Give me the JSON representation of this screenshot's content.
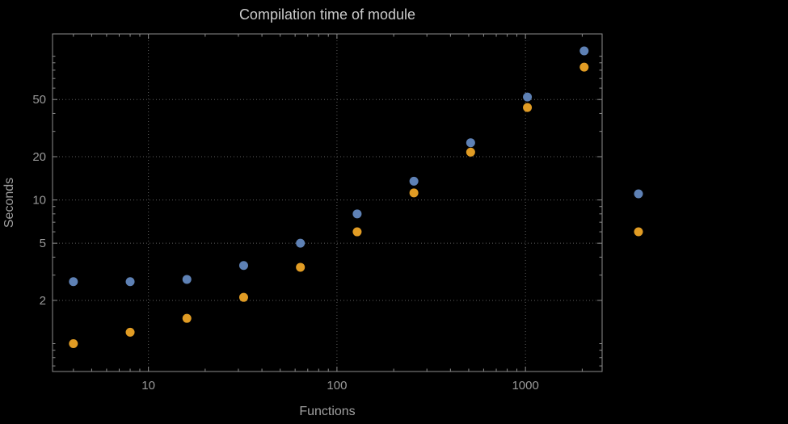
{
  "chart_data": {
    "type": "scatter",
    "title": "Compilation time of module",
    "xlabel": "Functions",
    "ylabel": "Seconds",
    "x_scale": "log",
    "y_scale": "log",
    "xlim": [
      3.1,
      2550
    ],
    "ylim": [
      0.64,
      143
    ],
    "x_ticks": [
      10,
      100,
      1000
    ],
    "x_tick_labels": [
      "10",
      "100",
      "1000"
    ],
    "y_ticks": [
      2,
      5,
      10,
      20,
      50
    ],
    "y_tick_labels": [
      "2",
      "5",
      "10",
      "20",
      "50"
    ],
    "grid": true,
    "grid_style": "dotted",
    "legend_position": "right-outside",
    "series": [
      {
        "name": "series-1-blue",
        "color": "#5e81b5",
        "x": [
          4,
          8,
          16,
          32,
          64,
          128,
          256,
          512,
          1024,
          2048
        ],
        "y": [
          2.7,
          2.7,
          2.8,
          3.5,
          5.0,
          8.0,
          13.5,
          25,
          52,
          109
        ]
      },
      {
        "name": "series-2-orange",
        "color": "#e19c24",
        "x": [
          4,
          8,
          16,
          32,
          64,
          128,
          256,
          512,
          1024,
          2048
        ],
        "y": [
          1.0,
          1.2,
          1.5,
          2.1,
          3.4,
          6.0,
          11.2,
          21.5,
          44,
          84
        ]
      }
    ],
    "colors": {
      "background": "#000000",
      "title": "#cbcbcb",
      "axis_labels": "#a0a0a0",
      "tick_labels": "#9a9a9a",
      "frame": "#8c8c8c",
      "grid": "#5e5e5e"
    }
  }
}
